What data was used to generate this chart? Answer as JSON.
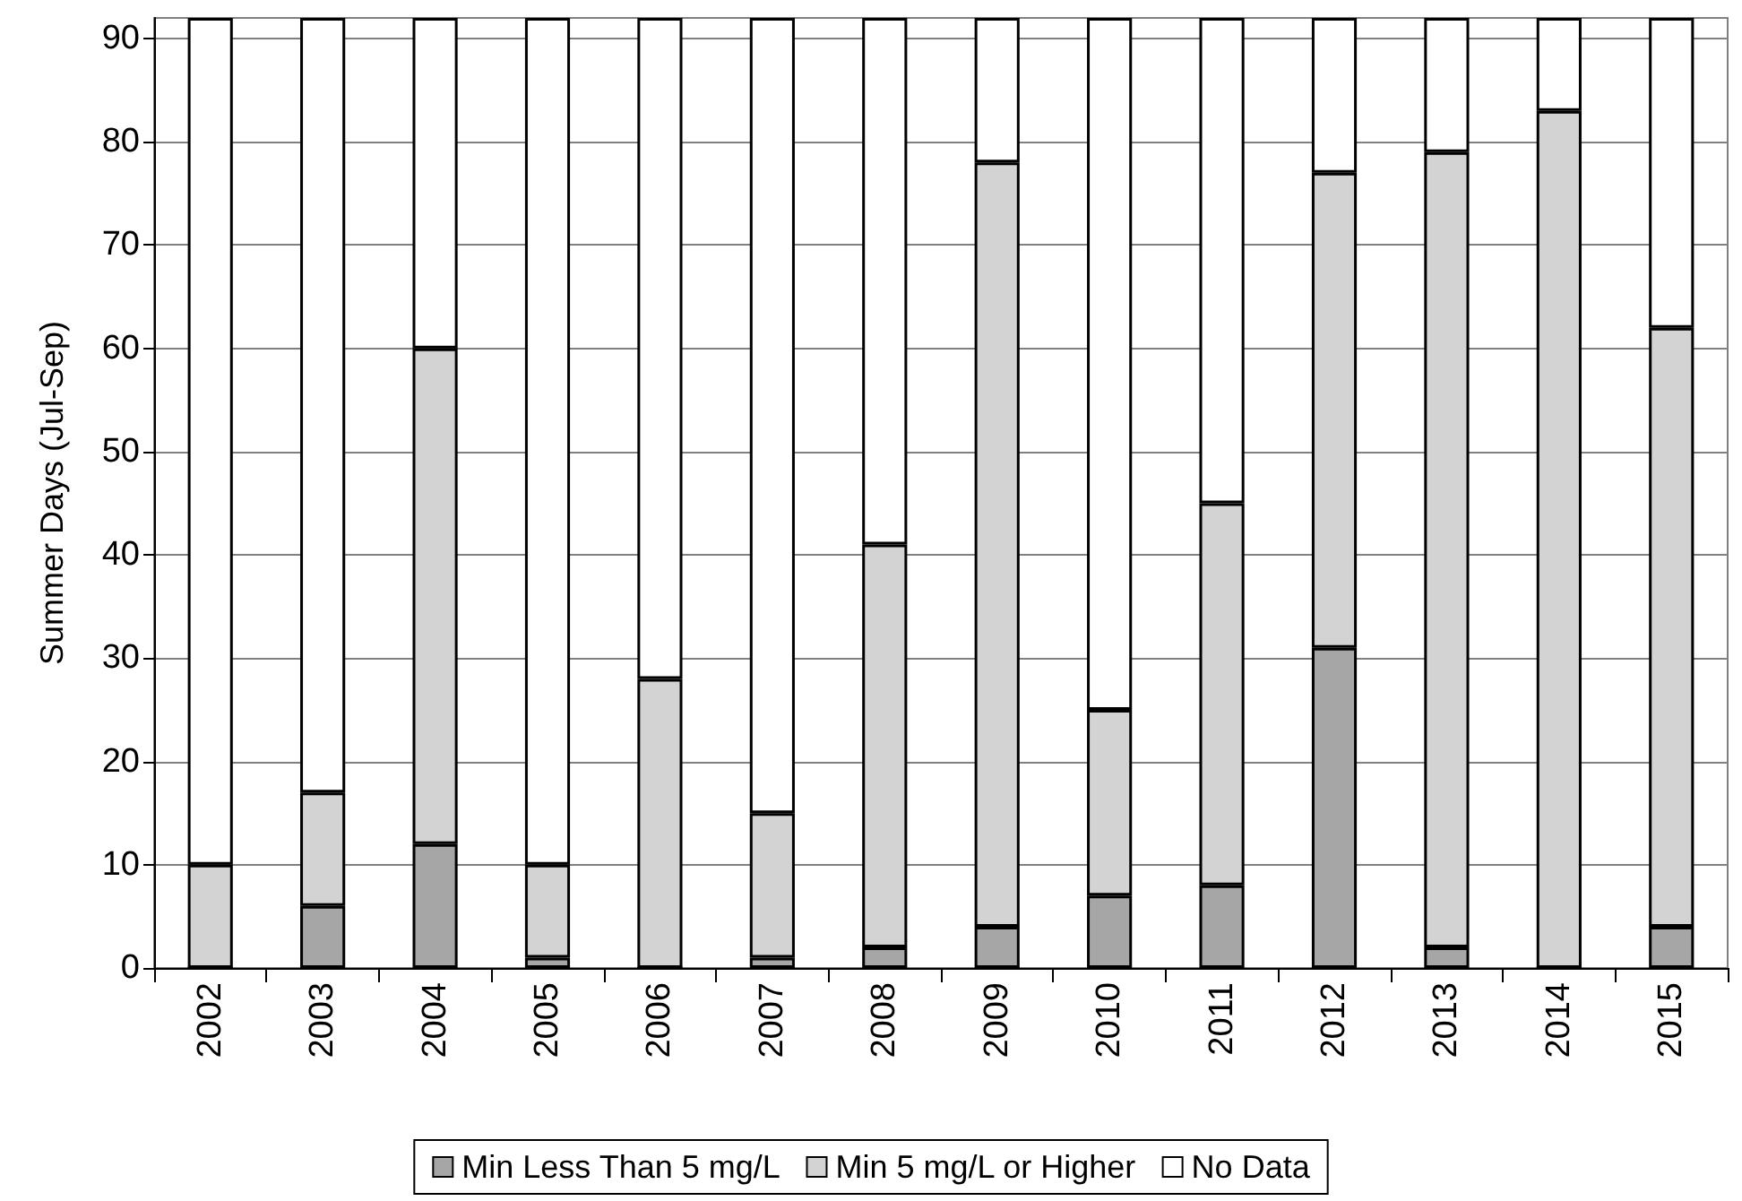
{
  "chart_data": {
    "type": "bar",
    "stacked": true,
    "ylabel": "Summer Days (Jul-Sep)",
    "categories": [
      "2002",
      "2003",
      "2004",
      "2005",
      "2006",
      "2007",
      "2008",
      "2009",
      "2010",
      "2011",
      "2012",
      "2013",
      "2014",
      "2015"
    ],
    "series": [
      {
        "name": "Min Less Than 5 mg/L",
        "color": "#a6a6a6",
        "values": [
          0,
          6,
          12,
          1,
          0,
          1,
          2,
          4,
          7,
          8,
          31,
          2,
          0,
          4
        ]
      },
      {
        "name": "Min 5 mg/L or Higher",
        "color": "#d3d3d3",
        "values": [
          10,
          11,
          48,
          9,
          28,
          14,
          39,
          74,
          18,
          37,
          46,
          77,
          83,
          58
        ]
      },
      {
        "name": "No Data",
        "color": "#ffffff",
        "values": [
          82,
          75,
          32,
          82,
          64,
          77,
          51,
          14,
          67,
          47,
          15,
          13,
          9,
          30
        ]
      }
    ],
    "ylim": [
      0,
      92
    ],
    "yticks": [
      0,
      10,
      20,
      30,
      40,
      50,
      60,
      70,
      80,
      90
    ],
    "grid": "y",
    "legend": "bottom"
  }
}
